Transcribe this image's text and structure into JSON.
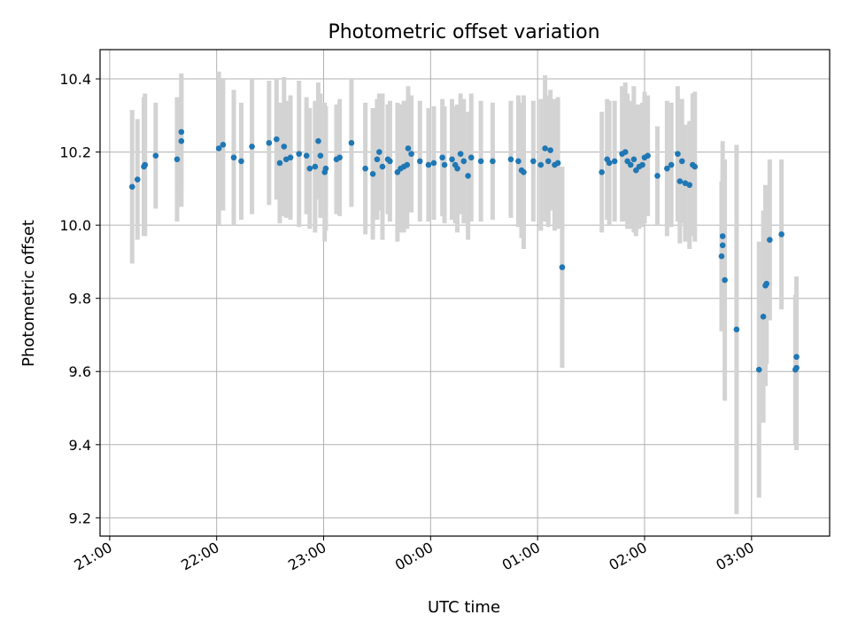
{
  "chart_data": {
    "type": "scatter",
    "title": "Photometric offset variation",
    "xlabel": "UTC time",
    "ylabel": "Photometric offset",
    "x_unit": "hours since 21:00 UTC",
    "xlim": [
      -0.09,
      6.73
    ],
    "ylim": [
      9.15,
      10.48
    ],
    "x_ticks": [
      {
        "v": 0,
        "label": "21:00"
      },
      {
        "v": 1,
        "label": "22:00"
      },
      {
        "v": 2,
        "label": "23:00"
      },
      {
        "v": 3,
        "label": "00:00"
      },
      {
        "v": 4,
        "label": "01:00"
      },
      {
        "v": 5,
        "label": "02:00"
      },
      {
        "v": 6,
        "label": "03:00"
      }
    ],
    "y_ticks": [
      {
        "v": 9.2,
        "label": "9.2"
      },
      {
        "v": 9.4,
        "label": "9.4"
      },
      {
        "v": 9.6,
        "label": "9.6"
      },
      {
        "v": 9.8,
        "label": "9.8"
      },
      {
        "v": 10.0,
        "label": "10.0"
      },
      {
        "v": 10.2,
        "label": "10.2"
      },
      {
        "v": 10.4,
        "label": "10.4"
      }
    ],
    "grid": true,
    "colors": {
      "point": "#1f77b4",
      "errorbar": "#d3d3d3"
    },
    "points": [
      [
        0.21,
        10.105,
        0.21
      ],
      [
        0.26,
        10.125,
        0.165
      ],
      [
        0.32,
        10.16,
        0.19
      ],
      [
        0.33,
        10.165,
        0.195
      ],
      [
        0.43,
        10.19,
        0.145
      ],
      [
        0.63,
        10.18,
        0.17
      ],
      [
        0.67,
        10.23,
        0.18
      ],
      [
        0.67,
        10.255,
        0.16
      ],
      [
        1.02,
        10.21,
        0.21
      ],
      [
        1.06,
        10.22,
        0.18
      ],
      [
        1.16,
        10.185,
        0.185
      ],
      [
        1.23,
        10.175,
        0.16
      ],
      [
        1.33,
        10.215,
        0.185
      ],
      [
        1.49,
        10.225,
        0.17
      ],
      [
        1.56,
        10.235,
        0.165
      ],
      [
        1.59,
        10.17,
        0.165
      ],
      [
        1.63,
        10.215,
        0.19
      ],
      [
        1.65,
        10.18,
        0.16
      ],
      [
        1.69,
        10.185,
        0.17
      ],
      [
        1.77,
        10.195,
        0.2
      ],
      [
        1.84,
        10.19,
        0.16
      ],
      [
        1.87,
        10.155,
        0.165
      ],
      [
        1.92,
        10.16,
        0.18
      ],
      [
        1.95,
        10.23,
        0.16
      ],
      [
        1.97,
        10.19,
        0.17
      ],
      [
        2.01,
        10.145,
        0.19
      ],
      [
        2.02,
        10.155,
        0.17
      ],
      [
        2.12,
        10.18,
        0.15
      ],
      [
        2.15,
        10.185,
        0.16
      ],
      [
        2.26,
        10.225,
        0.175
      ],
      [
        2.39,
        10.155,
        0.18
      ],
      [
        2.46,
        10.14,
        0.18
      ],
      [
        2.5,
        10.18,
        0.165
      ],
      [
        2.52,
        10.2,
        0.16
      ],
      [
        2.55,
        10.16,
        0.2
      ],
      [
        2.6,
        10.18,
        0.15
      ],
      [
        2.62,
        10.175,
        0.165
      ],
      [
        2.69,
        10.145,
        0.19
      ],
      [
        2.72,
        10.155,
        0.175
      ],
      [
        2.75,
        10.16,
        0.18
      ],
      [
        2.78,
        10.165,
        0.175
      ],
      [
        2.79,
        10.21,
        0.17
      ],
      [
        2.82,
        10.195,
        0.16
      ],
      [
        2.9,
        10.175,
        0.165
      ],
      [
        2.98,
        10.165,
        0.155
      ],
      [
        3.03,
        10.17,
        0.155
      ],
      [
        3.11,
        10.185,
        0.16
      ],
      [
        3.13,
        10.165,
        0.16
      ],
      [
        3.2,
        10.18,
        0.165
      ],
      [
        3.23,
        10.165,
        0.16
      ],
      [
        3.25,
        10.155,
        0.175
      ],
      [
        3.28,
        10.195,
        0.165
      ],
      [
        3.31,
        10.175,
        0.17
      ],
      [
        3.35,
        10.135,
        0.175
      ],
      [
        3.38,
        10.185,
        0.175
      ],
      [
        3.47,
        10.175,
        0.165
      ],
      [
        3.58,
        10.175,
        0.16
      ],
      [
        3.75,
        10.18,
        0.16
      ],
      [
        3.82,
        10.175,
        0.18
      ],
      [
        3.85,
        10.15,
        0.185
      ],
      [
        3.87,
        10.145,
        0.21
      ],
      [
        3.96,
        10.175,
        0.165
      ],
      [
        4.03,
        10.165,
        0.18
      ],
      [
        4.07,
        10.21,
        0.2
      ],
      [
        4.1,
        10.175,
        0.18
      ],
      [
        4.12,
        10.205,
        0.165
      ],
      [
        4.16,
        10.165,
        0.18
      ],
      [
        4.19,
        10.17,
        0.18
      ],
      [
        4.23,
        9.885,
        0.275
      ],
      [
        4.6,
        10.145,
        0.165
      ],
      [
        4.65,
        10.18,
        0.165
      ],
      [
        4.67,
        10.17,
        0.17
      ],
      [
        4.72,
        10.175,
        0.165
      ],
      [
        4.79,
        10.195,
        0.185
      ],
      [
        4.82,
        10.2,
        0.19
      ],
      [
        4.84,
        10.175,
        0.185
      ],
      [
        4.87,
        10.165,
        0.175
      ],
      [
        4.9,
        10.18,
        0.2
      ],
      [
        4.92,
        10.15,
        0.18
      ],
      [
        4.95,
        10.16,
        0.17
      ],
      [
        4.98,
        10.165,
        0.17
      ],
      [
        5.0,
        10.185,
        0.18
      ],
      [
        5.03,
        10.19,
        0.165
      ],
      [
        5.12,
        10.135,
        0.135
      ],
      [
        5.21,
        10.155,
        0.185
      ],
      [
        5.25,
        10.165,
        0.17
      ],
      [
        5.31,
        10.195,
        0.185
      ],
      [
        5.33,
        10.12,
        0.17
      ],
      [
        5.35,
        10.175,
        0.17
      ],
      [
        5.38,
        10.115,
        0.16
      ],
      [
        5.42,
        10.11,
        0.175
      ],
      [
        5.45,
        10.165,
        0.195
      ],
      [
        5.47,
        10.16,
        0.205
      ],
      [
        5.72,
        9.915,
        0.205
      ],
      [
        5.73,
        9.945,
        0.215
      ],
      [
        5.73,
        9.97,
        0.26
      ],
      [
        5.75,
        9.85,
        0.33
      ],
      [
        5.86,
        9.715,
        0.505
      ],
      [
        6.07,
        9.605,
        0.35
      ],
      [
        6.11,
        9.75,
        0.29
      ],
      [
        6.13,
        9.835,
        0.275
      ],
      [
        6.14,
        9.84,
        0.22
      ],
      [
        6.17,
        9.96,
        0.22
      ],
      [
        6.28,
        9.975,
        0.205
      ],
      [
        6.41,
        9.605,
        0.205
      ],
      [
        6.42,
        9.61,
        0.225
      ],
      [
        6.42,
        9.64,
        0.22
      ]
    ]
  }
}
